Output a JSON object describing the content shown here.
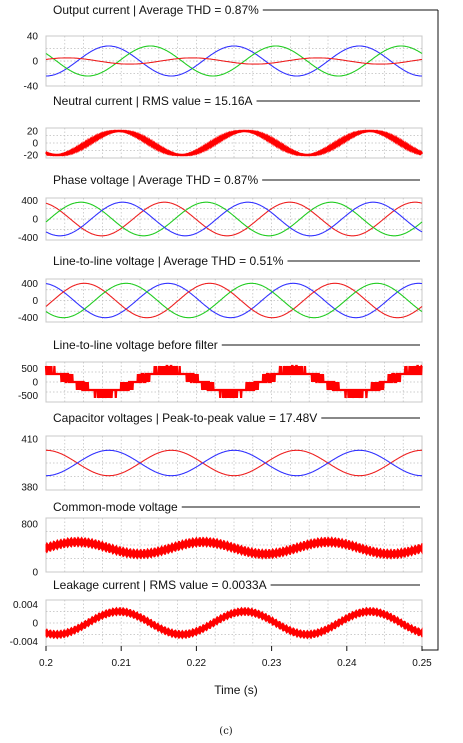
{
  "chart_data": [
    {
      "type": "line",
      "title": "Output current | Average THD = 0.87%",
      "ylim": [
        -40,
        40
      ],
      "yticks": [
        "40",
        "0",
        "-40"
      ],
      "ytick_values": [
        40,
        0,
        -40
      ],
      "series": [
        {
          "color": "#3333ff",
          "amplitude": 24,
          "phase": -90
        },
        {
          "color": "#22cc22",
          "amplitude": 24,
          "phase": 150
        },
        {
          "color": "#ee2222",
          "amplitude": 5,
          "phase": 30
        }
      ]
    },
    {
      "type": "line",
      "title": "Neutral current | RMS value = 15.16A",
      "ylim": [
        -25,
        25
      ],
      "yticks": [
        "20",
        "0",
        "-20"
      ],
      "ytick_values": [
        20,
        0,
        -20
      ],
      "series": [
        {
          "color": "#ff0000",
          "amplitude": 20,
          "phase": -120,
          "ripple": 1.6
        }
      ]
    },
    {
      "type": "line",
      "title": "Phase voltage | Average THD = 0.87%",
      "ylim": [
        -450,
        450
      ],
      "yticks": [
        "400",
        "0",
        "-400"
      ],
      "ytick_values": [
        400,
        0,
        -400
      ],
      "series": [
        {
          "color": "#ee2222",
          "amplitude": 360,
          "phase": 110
        },
        {
          "color": "#22cc22",
          "amplitude": 360,
          "phase": -10
        },
        {
          "color": "#3333ff",
          "amplitude": 360,
          "phase": 230
        }
      ]
    },
    {
      "type": "line",
      "title": "Line-to-line voltage | Average THD = 0.51%",
      "ylim": [
        -500,
        500
      ],
      "yticks": [
        "400",
        "0",
        "-400"
      ],
      "ytick_values": [
        400,
        0,
        -400
      ],
      "series": [
        {
          "color": "#3333ff",
          "amplitude": 400,
          "phase": 100
        },
        {
          "color": "#ee2222",
          "amplitude": 400,
          "phase": -20
        },
        {
          "color": "#22cc22",
          "amplitude": 400,
          "phase": 220
        }
      ]
    },
    {
      "type": "line",
      "title": "Line-to-line voltage before filter",
      "ylim": [
        -750,
        750
      ],
      "yticks": [
        "500",
        "0",
        "-500"
      ],
      "ytick_values": [
        500,
        0,
        -500
      ],
      "series": [
        {
          "color": "#ff0000",
          "amplitude": 400,
          "phase": 100,
          "pwm": true
        }
      ]
    },
    {
      "type": "line",
      "title": "Capacitor voltages | Peak-to-peak value = 17.48V",
      "ylim": [
        378,
        412
      ],
      "yticks": [
        "410",
        "",
        "380"
      ],
      "ytick_values": [
        410,
        395,
        380
      ],
      "series": [
        {
          "color": "#ee2222",
          "amplitude": 8,
          "phase": 90,
          "offset": 395
        },
        {
          "color": "#3333ff",
          "amplitude": 8,
          "phase": -90,
          "offset": 395
        }
      ]
    },
    {
      "type": "line",
      "title": "Common-mode voltage",
      "ylim": [
        0,
        900
      ],
      "yticks": [
        "800",
        "",
        "0"
      ],
      "ytick_values": [
        800,
        400,
        0
      ],
      "series": [
        {
          "color": "#ff0000",
          "amplitude": 100,
          "phase": 0,
          "offset": 400,
          "band": true
        }
      ]
    },
    {
      "type": "line",
      "title": "Leakage current | RMS value = 0.0033A",
      "ylim": [
        -0.005,
        0.005
      ],
      "yticks": [
        "0.004",
        "0",
        "-0.004"
      ],
      "ytick_values": [
        0.004,
        0,
        -0.004
      ],
      "series": [
        {
          "color": "#ff0000",
          "amplitude": 0.0025,
          "phase": -120,
          "band": true
        }
      ]
    }
  ],
  "xaxis": {
    "label": "Time (s)",
    "ticks": [
      "0.2",
      "0.21",
      "0.22",
      "0.23",
      "0.24",
      "0.25"
    ],
    "range": [
      0.2,
      0.25
    ],
    "tick_values": [
      0.2,
      0.21,
      0.22,
      0.23,
      0.24,
      0.25
    ]
  },
  "caption": "(c)",
  "colors": {
    "red": "#ff0000",
    "blue": "#3333ff",
    "green": "#22cc22",
    "grid": "#bdbdbd"
  }
}
